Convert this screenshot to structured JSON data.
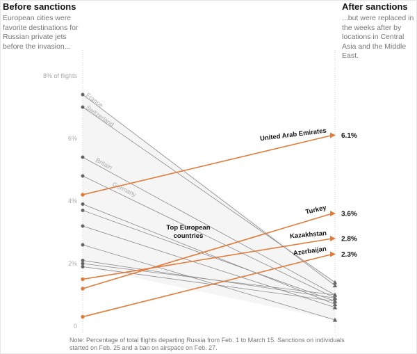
{
  "header": {
    "left_title": "Before sanctions",
    "left_subtitle": "European cities were favorite destinations for Russian private jets before the invasion...",
    "right_title": "After sanctions",
    "right_subtitle": "...but were replaced in the weeks after by locations in Central Asia and the Middle East."
  },
  "note": "Note: Percentage of total flights departing Russia from Feb. 1 to March 15. Sanctions on individuals started on Feb. 25 and a ban on airspace on Feb. 27.",
  "annotation": "Top European countries",
  "colors": {
    "orange": "#e07b39",
    "gray": "#666666",
    "fill": "#ececec"
  },
  "chart_data": {
    "type": "slope",
    "x": [
      "Before sanctions",
      "After sanctions"
    ],
    "ylim": [
      0,
      8
    ],
    "yticks": [
      0,
      2,
      4,
      6,
      8
    ],
    "ytick_labels": [
      "0",
      "2%",
      "4%",
      "6%",
      "8% of flights"
    ],
    "series": [
      {
        "name": "France",
        "before": 7.4,
        "after": 1.3,
        "group": "europe",
        "label_side": "left"
      },
      {
        "name": "Switzerland",
        "before": 7.0,
        "after": 1.4,
        "group": "europe",
        "label_side": "left"
      },
      {
        "name": "Britain",
        "before": 5.4,
        "after": 1.0,
        "group": "europe",
        "label_side": "left"
      },
      {
        "name": "Germany",
        "before": 4.8,
        "after": 0.9,
        "group": "europe",
        "label_side": "left"
      },
      {
        "before": 3.9,
        "after": 0.7,
        "group": "europe"
      },
      {
        "before": 3.7,
        "after": 0.8,
        "group": "europe"
      },
      {
        "before": 3.2,
        "after": 0.6,
        "group": "europe"
      },
      {
        "before": 2.6,
        "after": 0.2,
        "group": "europe"
      },
      {
        "before": 2.1,
        "after": 0.9,
        "group": "europe"
      },
      {
        "before": 2.0,
        "after": 1.0,
        "group": "europe"
      },
      {
        "before": 1.9,
        "after": 0.8,
        "group": "europe"
      },
      {
        "name": "United Arab Emirates",
        "before": 4.2,
        "after": 6.1,
        "group": "highlight",
        "value_label": "6.1%"
      },
      {
        "name": "Turkey",
        "before": 1.2,
        "after": 3.6,
        "group": "highlight",
        "value_label": "3.6%"
      },
      {
        "name": "Kazakhstan",
        "before": 1.5,
        "after": 2.8,
        "group": "highlight",
        "value_label": "2.8%"
      },
      {
        "name": "Azerbaijan",
        "before": 0.3,
        "after": 2.3,
        "group": "highlight",
        "value_label": "2.3%"
      }
    ]
  }
}
